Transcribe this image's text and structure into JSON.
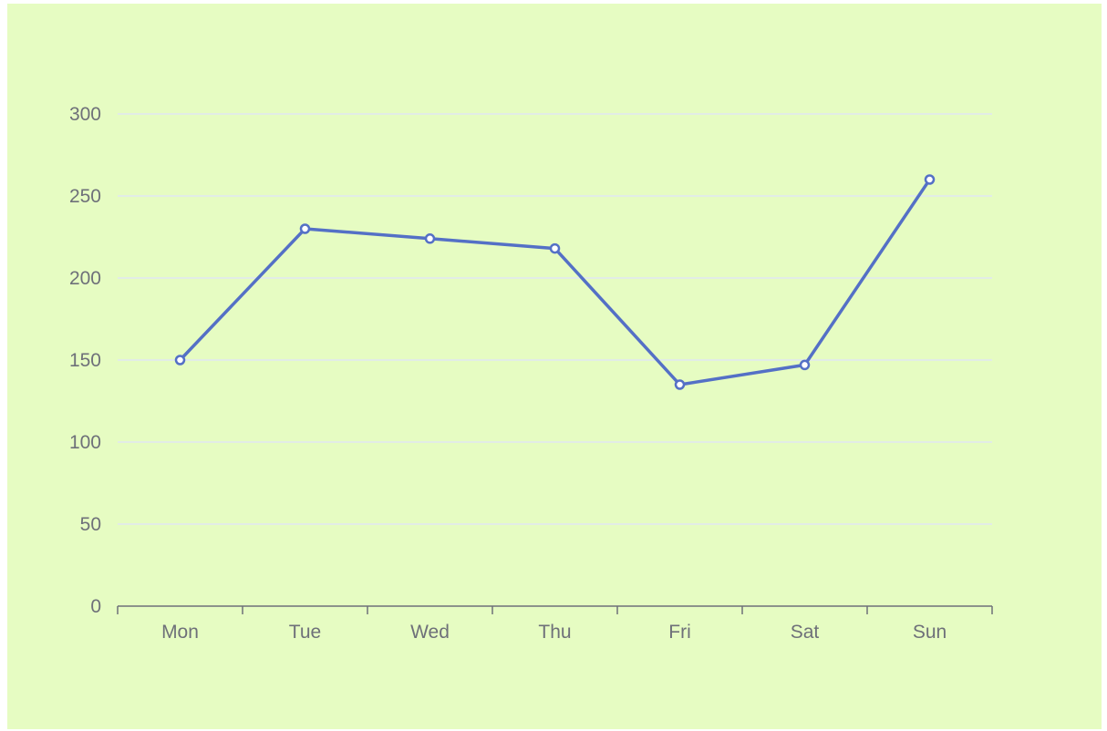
{
  "chart_data": {
    "type": "line",
    "categories": [
      "Mon",
      "Tue",
      "Wed",
      "Thu",
      "Fri",
      "Sat",
      "Sun"
    ],
    "series": [
      {
        "values": [
          150,
          230,
          224,
          218,
          135,
          147,
          260
        ],
        "color": "#5470c6"
      }
    ],
    "title": "",
    "xlabel": "",
    "ylabel": "",
    "ylim": [
      0,
      300
    ],
    "yticks": [
      0,
      50,
      100,
      150,
      200,
      250,
      300
    ],
    "grid": true,
    "legend": "none",
    "colors": {
      "background": "#e6fcc2",
      "gridline": "#e0e6f1",
      "axis": "#6e7079",
      "label": "#6e7079",
      "line": "#5470c6",
      "marker_fill": "#ffffff"
    }
  }
}
